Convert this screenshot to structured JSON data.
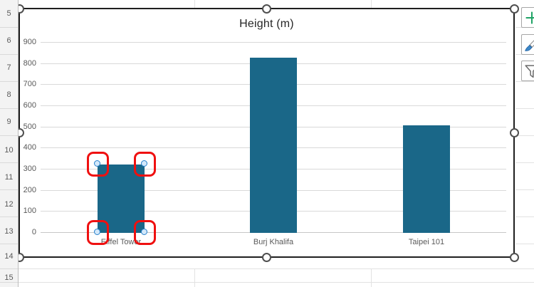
{
  "sheet": {
    "row_labels": [
      "5",
      "6",
      "7",
      "8",
      "9",
      "10",
      "11",
      "12",
      "13",
      "14",
      "15"
    ]
  },
  "chart_data": {
    "type": "bar",
    "title": "Height (m)",
    "categories": [
      "Eiffel Tower",
      "Burj Khalifa",
      "Taipei 101"
    ],
    "values": [
      324,
      828,
      508
    ],
    "xlabel": "",
    "ylabel": "",
    "ylim": [
      0,
      900
    ],
    "yticks": [
      0,
      100,
      200,
      300,
      400,
      500,
      600,
      700,
      800,
      900
    ],
    "grid": true,
    "legend": false,
    "selected_point": "Eiffel Tower",
    "selected_point_index": 0
  },
  "colors": {
    "bar_fill": "#1A6788",
    "chart_title": "#262626",
    "axis_label": "#595959",
    "plot_gridline": "#D9D9D9",
    "sheet_gridline": "#E2E2E2",
    "chart_selection_border": "#1F1F1F",
    "resize_handle_stroke": "#4F4F4F",
    "annotation_red": "#EF1010",
    "point_handle_stroke": "#2580CC",
    "point_handle_fill": "#D3E8FA",
    "plus_green": "#21A366",
    "brush_blue": "#3C87C8",
    "funnel_gray": "#6A6A6A"
  },
  "side_buttons": [
    {
      "id": "chart-elements",
      "icon": "plus-icon"
    },
    {
      "id": "chart-styles",
      "icon": "brush-icon"
    },
    {
      "id": "chart-filters",
      "icon": "funnel-icon"
    }
  ]
}
